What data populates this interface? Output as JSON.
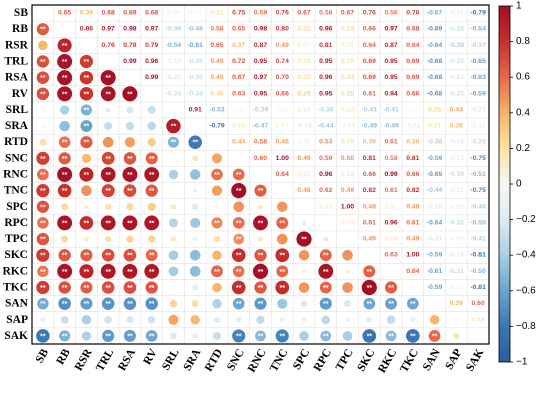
{
  "chart_data": {
    "type": "heatmap",
    "variables": [
      "SB",
      "RB",
      "RSR",
      "TRL",
      "RSA",
      "RV",
      "SRL",
      "SRA",
      "RTD",
      "SNC",
      "RNC",
      "TNC",
      "SPC",
      "RPC",
      "TPC",
      "SKC",
      "RKC",
      "TKC",
      "SAN",
      "SAP",
      "SAK"
    ],
    "upper_values": [
      [
        null,
        0.65,
        0.39,
        0.68,
        0.69,
        0.68,
        0.04,
        0.03,
        0.21,
        0.75,
        0.59,
        0.76,
        0.67,
        0.58,
        0.67,
        0.76,
        0.56,
        0.76,
        -0.57,
        -0.11,
        -0.79
      ],
      [
        null,
        null,
        0.86,
        0.97,
        0.98,
        0.97,
        -0.38,
        -0.48,
        0.58,
        0.65,
        0.98,
        0.8,
        0.22,
        0.96,
        0.23,
        0.66,
        0.97,
        0.68,
        -0.69,
        -0.28,
        -0.54
      ],
      [
        null,
        null,
        null,
        0.76,
        0.78,
        0.79,
        -0.54,
        -0.61,
        0.65,
        0.37,
        0.87,
        0.49,
        0.07,
        0.81,
        0.11,
        0.64,
        0.87,
        0.64,
        -0.64,
        -0.39,
        -0.37
      ],
      [
        null,
        null,
        null,
        null,
        0.99,
        0.96,
        -0.13,
        -0.29,
        0.49,
        0.72,
        0.95,
        0.74,
        0.18,
        0.95,
        0.19,
        0.69,
        0.95,
        0.69,
        -0.68,
        -0.25,
        -0.65
      ],
      [
        null,
        null,
        null,
        null,
        null,
        0.99,
        -0.22,
        -0.3,
        0.45,
        0.67,
        0.97,
        0.7,
        0.23,
        0.96,
        0.24,
        0.69,
        0.95,
        0.69,
        -0.68,
        -0.22,
        -0.63
      ],
      [
        null,
        null,
        null,
        null,
        null,
        null,
        -0.28,
        -0.33,
        0.3,
        0.63,
        0.95,
        0.66,
        0.29,
        0.95,
        0.25,
        0.61,
        0.94,
        0.66,
        -0.68,
        -0.25,
        -0.59
      ],
      [
        null,
        null,
        null,
        null,
        null,
        null,
        null,
        0.91,
        -0.53,
        0.01,
        -0.39,
        0.02,
        0.12,
        -0.36,
        0.14,
        -0.41,
        -0.41,
        0.0,
        0.25,
        0.44,
        -0.21
      ],
      [
        null,
        null,
        null,
        null,
        null,
        null,
        null,
        null,
        -0.79,
        0.15,
        -0.47,
        0.07,
        -0.19,
        -0.44,
        -0.09,
        -0.49,
        -0.49,
        -0.15,
        0.21,
        0.38,
        -0.11
      ],
      [
        null,
        null,
        null,
        null,
        null,
        null,
        null,
        null,
        null,
        0.44,
        0.58,
        0.46,
        0.05,
        0.53,
        0.19,
        0.39,
        0.61,
        0.39,
        -0.38,
        -0.18,
        -0.28
      ],
      [
        null,
        null,
        null,
        null,
        null,
        null,
        null,
        null,
        null,
        null,
        0.6,
        1.0,
        0.49,
        0.59,
        0.5,
        0.81,
        0.58,
        0.81,
        -0.59,
        -0.13,
        -0.75
      ],
      [
        null,
        null,
        null,
        null,
        null,
        null,
        null,
        null,
        null,
        null,
        null,
        0.64,
        0.11,
        0.96,
        0.12,
        0.66,
        0.99,
        0.66,
        -0.65,
        -0.3,
        -0.51
      ],
      [
        null,
        null,
        null,
        null,
        null,
        null,
        null,
        null,
        null,
        null,
        null,
        null,
        0.48,
        0.62,
        0.49,
        0.82,
        0.61,
        0.82,
        -0.44,
        -0.11,
        -0.75
      ],
      [
        null,
        null,
        null,
        null,
        null,
        null,
        null,
        null,
        null,
        null,
        null,
        null,
        null,
        0.1,
        1.0,
        0.48,
        0.07,
        0.48,
        -0.2,
        -0.08,
        -0.4
      ],
      [
        null,
        null,
        null,
        null,
        null,
        null,
        null,
        null,
        null,
        null,
        null,
        null,
        null,
        null,
        0.12,
        0.61,
        0.96,
        0.61,
        -0.64,
        -0.32,
        -0.5
      ],
      [
        null,
        null,
        null,
        null,
        null,
        null,
        null,
        null,
        null,
        null,
        null,
        null,
        null,
        null,
        null,
        0.49,
        0.08,
        0.49,
        -0.21,
        -0.09,
        -0.41
      ],
      [
        null,
        null,
        null,
        null,
        null,
        null,
        null,
        null,
        null,
        null,
        null,
        null,
        null,
        null,
        null,
        null,
        0.63,
        1.0,
        -0.59,
        -0.15,
        -0.81
      ],
      [
        null,
        null,
        null,
        null,
        null,
        null,
        null,
        null,
        null,
        null,
        null,
        null,
        null,
        null,
        null,
        null,
        null,
        0.64,
        -0.61,
        -0.31,
        -0.5
      ],
      [
        null,
        null,
        null,
        null,
        null,
        null,
        null,
        null,
        null,
        null,
        null,
        null,
        null,
        null,
        null,
        null,
        null,
        null,
        -0.59,
        -0.11,
        -0.81
      ],
      [
        null,
        null,
        null,
        null,
        null,
        null,
        null,
        null,
        null,
        null,
        null,
        null,
        null,
        null,
        null,
        null,
        null,
        null,
        null,
        0.39,
        0.6
      ],
      [
        null,
        null,
        null,
        null,
        null,
        null,
        null,
        null,
        null,
        null,
        null,
        null,
        null,
        null,
        null,
        null,
        null,
        null,
        null,
        null,
        0.16
      ],
      [
        null,
        null,
        null,
        null,
        null,
        null,
        null,
        null,
        null,
        null,
        null,
        null,
        null,
        null,
        null,
        null,
        null,
        null,
        null,
        null,
        null
      ]
    ],
    "significant_marker": "**",
    "colorbar": {
      "range": [
        -1,
        1
      ],
      "ticks": [
        1,
        0.8,
        0.6,
        0.4,
        0.2,
        0,
        -0.2,
        -0.4,
        -0.6,
        -0.8,
        -1
      ],
      "tick_labels": [
        "1",
        "0.8",
        "0.6",
        "0.4",
        "0.2",
        "0",
        "−0.2",
        "−0.4",
        "−0.6",
        "−0.8",
        "−1"
      ],
      "colors": [
        "#2a5d9c",
        "#3b77b4",
        "#6aa5cf",
        "#a9cfe4",
        "#dcebf2",
        "#f7f7f2",
        "#fbe3a2",
        "#f7b465",
        "#e8684a",
        "#c6312b",
        "#a40d26"
      ]
    },
    "grid": true,
    "title": "",
    "xlabel": "",
    "ylabel": ""
  }
}
